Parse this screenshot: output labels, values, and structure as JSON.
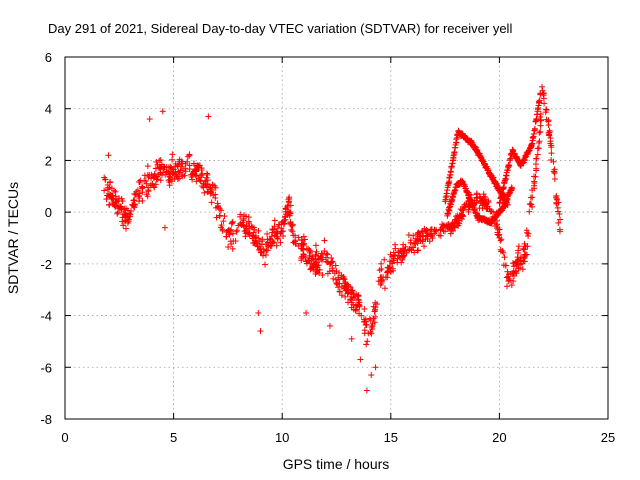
{
  "chart_data": {
    "type": "scatter",
    "title": "Day 291 of 2021, Sidereal Day-to-day VTEC variation (SDTVAR) for receiver yell",
    "xlabel": "GPS time / hours",
    "ylabel": "SDTVAR / TECUs",
    "xlim": [
      0,
      25
    ],
    "ylim": [
      -8,
      6
    ],
    "xticks": [
      0,
      5,
      10,
      15,
      20,
      25
    ],
    "yticks": [
      -8,
      -6,
      -4,
      -2,
      0,
      2,
      4,
      6
    ],
    "grid": true,
    "marker": "+",
    "marker_color": "#ff0000",
    "trend": [
      [
        1.8,
        1.0
      ],
      [
        2.2,
        0.7
      ],
      [
        2.5,
        0.2
      ],
      [
        2.8,
        -0.3
      ],
      [
        3.0,
        0.2
      ],
      [
        3.3,
        0.6
      ],
      [
        3.6,
        1.0
      ],
      [
        4.0,
        1.3
      ],
      [
        4.5,
        1.6
      ],
      [
        5.0,
        1.5
      ],
      [
        5.5,
        1.8
      ],
      [
        6.0,
        1.6
      ],
      [
        6.5,
        1.2
      ],
      [
        7.0,
        0.3
      ],
      [
        7.3,
        -0.6
      ],
      [
        7.7,
        -0.9
      ],
      [
        8.2,
        -0.3
      ],
      [
        8.7,
        -1.0
      ],
      [
        9.2,
        -1.6
      ],
      [
        9.6,
        -0.8
      ],
      [
        10.0,
        -0.6
      ],
      [
        10.3,
        0.3
      ],
      [
        10.6,
        -1.2
      ],
      [
        11.0,
        -1.4
      ],
      [
        11.5,
        -2.0
      ],
      [
        12.0,
        -1.8
      ],
      [
        12.5,
        -2.5
      ],
      [
        13.0,
        -3.0
      ],
      [
        13.5,
        -3.6
      ],
      [
        13.9,
        -4.5
      ],
      [
        14.2,
        -4.2
      ],
      [
        14.5,
        -2.6
      ],
      [
        15.0,
        -2.0
      ],
      [
        15.5,
        -1.6
      ],
      [
        16.0,
        -1.2
      ],
      [
        16.5,
        -0.9
      ],
      [
        17.0,
        -0.8
      ],
      [
        17.5,
        -0.7
      ],
      [
        18.0,
        -0.4
      ],
      [
        18.5,
        0.3
      ],
      [
        19.0,
        0.5
      ],
      [
        19.5,
        0.2
      ],
      [
        20.0,
        -0.8
      ],
      [
        20.4,
        -2.6
      ],
      [
        20.8,
        -2.1
      ],
      [
        21.2,
        -1.6
      ],
      [
        21.5,
        0.6
      ],
      [
        21.8,
        2.5
      ],
      [
        22.0,
        4.8
      ],
      [
        22.3,
        3.0
      ],
      [
        22.8,
        -0.6
      ]
    ],
    "branches": [
      [
        [
          17.5,
          0.4
        ],
        [
          18.1,
          3.1
        ],
        [
          18.7,
          2.7
        ],
        [
          19.3,
          1.9
        ],
        [
          19.9,
          1.0
        ],
        [
          20.4,
          0.3
        ]
      ],
      [
        [
          17.6,
          -0.1
        ],
        [
          18.0,
          1.0
        ],
        [
          18.3,
          1.2
        ],
        [
          19.0,
          -0.2
        ],
        [
          19.6,
          -0.4
        ],
        [
          20.2,
          0.2
        ],
        [
          20.6,
          1.0
        ]
      ],
      [
        [
          20.0,
          0.3
        ],
        [
          20.6,
          2.4
        ],
        [
          21.0,
          1.8
        ],
        [
          21.5,
          2.6
        ],
        [
          21.9,
          4.6
        ]
      ]
    ],
    "outliers": [
      [
        3.9,
        3.6
      ],
      [
        4.5,
        3.9
      ],
      [
        6.6,
        3.7
      ],
      [
        4.6,
        -0.6
      ],
      [
        8.9,
        -3.9
      ],
      [
        9.0,
        -4.6
      ],
      [
        11.1,
        -3.9
      ],
      [
        12.2,
        -4.4
      ],
      [
        13.2,
        -4.9
      ],
      [
        13.9,
        -6.9
      ],
      [
        14.1,
        -6.3
      ],
      [
        13.6,
        -5.7
      ],
      [
        14.3,
        -6.0
      ],
      [
        2.0,
        2.2
      ]
    ]
  }
}
